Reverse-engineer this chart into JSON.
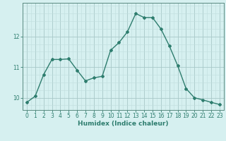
{
  "x": [
    0,
    1,
    2,
    3,
    4,
    5,
    6,
    7,
    8,
    9,
    10,
    11,
    12,
    13,
    14,
    15,
    16,
    17,
    18,
    19,
    20,
    21,
    22,
    23
  ],
  "y": [
    9.85,
    10.05,
    10.75,
    11.25,
    11.25,
    11.27,
    10.9,
    10.55,
    10.65,
    10.7,
    11.55,
    11.8,
    12.15,
    12.75,
    12.62,
    12.62,
    12.25,
    11.7,
    11.05,
    10.3,
    10.0,
    9.93,
    9.85,
    9.78
  ],
  "line_color": "#2e7d6e",
  "marker": "D",
  "markersize": 2.0,
  "linewidth": 1.0,
  "xlabel": "Humidex (Indice chaleur)",
  "xlabel_fontsize": 6.5,
  "bg_color": "#d6f0f0",
  "grid_color_major": "#a8c8c8",
  "grid_color_minor": "#c0dede",
  "xlim": [
    -0.5,
    23.5
  ],
  "ylim": [
    9.6,
    13.1
  ],
  "yticks": [
    10,
    11,
    12
  ],
  "xticks": [
    0,
    1,
    2,
    3,
    4,
    5,
    6,
    7,
    8,
    9,
    10,
    11,
    12,
    13,
    14,
    15,
    16,
    17,
    18,
    19,
    20,
    21,
    22,
    23
  ],
  "tick_color": "#2e7d6e",
  "tick_fontsize": 5.5,
  "spine_color": "#5a8a80"
}
